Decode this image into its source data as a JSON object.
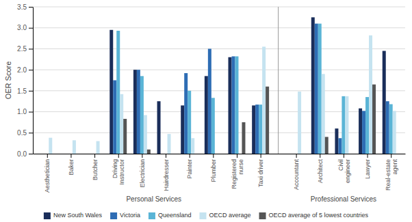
{
  "chart_data": {
    "type": "bar",
    "categories": [
      "Aesthetician",
      "Baker",
      "Butcher",
      "Driving\nInstructor",
      "Electrician",
      "Hairdresser",
      "Painter",
      "Plumber",
      "Registered\nnurse",
      "Taxi driver",
      "Accountant",
      "Architect",
      "Civil\nengineer",
      "Lawyer",
      "Real-estate\nagent"
    ],
    "series": [
      {
        "name": "New South Wales",
        "color": "#1a2e5a",
        "values": [
          0,
          0,
          0,
          2.95,
          2.0,
          1.25,
          1.15,
          1.85,
          2.3,
          1.15,
          0,
          3.25,
          0.6,
          1.08,
          2.45
        ]
      },
      {
        "name": "Victoria",
        "color": "#2e6db4",
        "values": [
          0,
          0,
          0,
          1.75,
          2.0,
          0,
          1.92,
          2.5,
          2.32,
          1.17,
          0,
          3.1,
          0.37,
          1.02,
          1.25
        ]
      },
      {
        "name": "Queensland",
        "color": "#5ab4d6",
        "values": [
          0,
          0,
          0,
          2.93,
          1.85,
          0,
          1.5,
          1.33,
          2.32,
          1.17,
          0,
          3.1,
          1.37,
          1.35,
          1.18
        ]
      },
      {
        "name": "OECD average",
        "color": "#c5e3f0",
        "values": [
          0.38,
          0.32,
          0.3,
          1.42,
          0.92,
          0.47,
          0.37,
          0,
          0,
          2.55,
          1.48,
          1.9,
          1.37,
          2.82,
          1.02
        ]
      },
      {
        "name": "OECD average of 5 lowest countries",
        "color": "#555555",
        "values": [
          0,
          0,
          0,
          0.83,
          0.1,
          0,
          0,
          0,
          0.75,
          1.6,
          0,
          0.4,
          0,
          1.65,
          0
        ]
      }
    ],
    "ylabel": "OER Score",
    "ylim": [
      0,
      3.5
    ],
    "yticks": [
      {
        "value": 0,
        "label": "0.0"
      },
      0.5,
      {
        "value": 1,
        "label": "1.0"
      },
      1.5,
      {
        "value": 2,
        "label": "2.0"
      },
      2.5,
      {
        "value": 3,
        "label": "3.0"
      },
      3.5
    ],
    "grid": true,
    "legend": "bottom",
    "annotations": [
      "Personal Services",
      "Professional Services"
    ]
  }
}
